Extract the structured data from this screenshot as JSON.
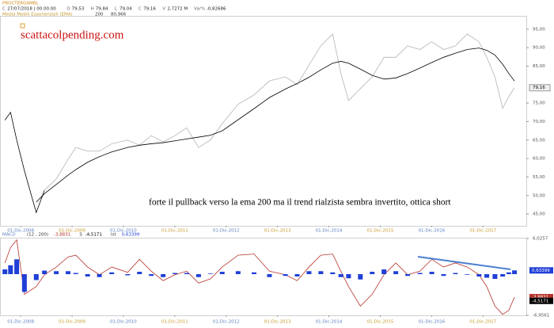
{
  "header": {
    "symbol": "PROCTERGAMBL",
    "fields": [
      {
        "label": "C",
        "value": "27/07/2018 | 00.00.00"
      },
      {
        "label": "O",
        "value": "79,53"
      },
      {
        "label": "H",
        "value": "79,84"
      },
      {
        "label": "L",
        "value": "79,04"
      },
      {
        "label": "C",
        "value": "79,16"
      },
      {
        "label": "V",
        "value": "2,7272 M"
      },
      {
        "label": "Var%",
        "value": "-0,82686"
      }
    ]
  },
  "chart_data": [
    {
      "type": "line",
      "watermark": "scattacolpending.com",
      "annotation": "forte il pullback verso la ema 200 ma il trend rialzista sembra invertito, ottica short",
      "x": [
        2008.61,
        2008.72,
        2008.84,
        2008.99,
        2009.22,
        2009.38,
        2009.61,
        2009.84,
        2009.99,
        2010.22,
        2010.45,
        2010.69,
        2011.0,
        2011.23,
        2011.46,
        2011.69,
        2011.92,
        2012.15,
        2012.38,
        2012.61,
        2012.84,
        2013.15,
        2013.46,
        2013.76,
        2014.07,
        2014.3,
        2014.53,
        2014.76,
        2014.99,
        2015.15,
        2015.3,
        2015.53,
        2015.76,
        2015.99,
        2016.22,
        2016.45,
        2016.69,
        2016.92,
        2017.15,
        2017.38,
        2017.61,
        2017.84,
        2017.99,
        2018.15,
        2018.3,
        2018.42,
        2018.53
      ],
      "series": [
        {
          "color": "#000000",
          "values": [
            70.4,
            72.5,
            65,
            56.7,
            45.4,
            51.4,
            null,
            null,
            null,
            null,
            null,
            null,
            null,
            null,
            null,
            null,
            null,
            null,
            null,
            null,
            null,
            null,
            null,
            null,
            null,
            null,
            null,
            null,
            null,
            null,
            null,
            null,
            null,
            null,
            null,
            null,
            null,
            null,
            null,
            null,
            null,
            null,
            null,
            null,
            null,
            null,
            null
          ]
        },
        {
          "color": "#b4b4b4",
          "last_label": "79,16",
          "values": [
            null,
            null,
            null,
            null,
            null,
            51.4,
            54.5,
            59.8,
            63,
            62,
            62,
            64,
            65,
            63.6,
            66.2,
            64.5,
            66.2,
            68.3,
            63,
            65,
            69.4,
            74.7,
            77.2,
            81,
            82.1,
            80,
            85.3,
            90.5,
            93.7,
            83.1,
            75.7,
            78.9,
            82.1,
            87.4,
            87.4,
            90.5,
            89.5,
            91.6,
            89.5,
            90.5,
            93.7,
            91.6,
            87.4,
            82.1,
            73.6,
            76.8,
            79.16
          ]
        },
        {
          "name": "Media Mobili Esponenziali (EMA)",
          "period": "200",
          "last_label": "80,966",
          "color": "#000000",
          "values": [
            null,
            null,
            null,
            null,
            48.2,
            50.5,
            53,
            55.5,
            57,
            59,
            60.5,
            61.8,
            63,
            63.6,
            64,
            64.3,
            64.8,
            65.3,
            65.8,
            66.3,
            67.5,
            70.5,
            73.5,
            76.5,
            78.8,
            80.3,
            82,
            84,
            85.8,
            86.3,
            85.8,
            84.2,
            82.5,
            81.5,
            81.8,
            83,
            84.5,
            86,
            87.4,
            88.5,
            89.5,
            89.9,
            89.3,
            88,
            85.5,
            83,
            80.966
          ]
        }
      ],
      "xlim": [
        2008.53,
        2018.76
      ],
      "xticks": [
        {
          "value": 2008.917,
          "label": "01-Dic-2008"
        },
        {
          "value": 2009.917,
          "label": "01-Dic-2009"
        },
        {
          "value": 2010.917,
          "label": "01-Dic-2010"
        },
        {
          "value": 2011.917,
          "label": "01-Dic-2011"
        },
        {
          "value": 2012.917,
          "label": "01-Dic-2012"
        },
        {
          "value": 2013.917,
          "label": "01-Dic-2013"
        },
        {
          "value": 2014.917,
          "label": "01-Dic-2014"
        },
        {
          "value": 2015.917,
          "label": "01-Dic-2015"
        },
        {
          "value": 2016.917,
          "label": "01-Dic-2016"
        },
        {
          "value": 2017.917,
          "label": "01-Dic-2017"
        }
      ],
      "ylim": [
        41.8,
        98.4
      ],
      "yticks": [
        {
          "value": 45,
          "label": "45,00"
        },
        {
          "value": 50,
          "label": "50,00"
        },
        {
          "value": 55,
          "label": "55,00"
        },
        {
          "value": 60,
          "label": "60,00"
        },
        {
          "value": 65,
          "label": "65,00"
        },
        {
          "value": 70,
          "label": "70,00"
        },
        {
          "value": 75,
          "label": "75,00"
        },
        {
          "value": 85,
          "label": "85,00"
        },
        {
          "value": 90,
          "label": "90,00"
        },
        {
          "value": 95,
          "label": "95,00"
        }
      ]
    },
    {
      "type": "line",
      "title": "MACD",
      "params": "(12 , 200)",
      "x": [
        2008.61,
        2008.72,
        2008.84,
        2008.99,
        2009.22,
        2009.38,
        2009.61,
        2009.84,
        2009.99,
        2010.22,
        2010.45,
        2010.69,
        2011.0,
        2011.23,
        2011.46,
        2011.69,
        2011.92,
        2012.15,
        2012.38,
        2012.61,
        2012.84,
        2013.15,
        2013.46,
        2013.76,
        2014.07,
        2014.3,
        2014.53,
        2014.76,
        2014.99,
        2015.15,
        2015.3,
        2015.53,
        2015.76,
        2015.99,
        2016.22,
        2016.45,
        2016.69,
        2016.92,
        2017.15,
        2017.38,
        2017.61,
        2017.84,
        2017.99,
        2018.15,
        2018.3,
        2018.42,
        2018.53
      ],
      "series": [
        {
          "color": "#b5332a",
          "last_label": "-3,8831",
          "values": [
            1.9,
            4.5,
            5.8,
            -3.4,
            -2.1,
            -0.1,
            1.2,
            2.9,
            3.2,
            1.2,
            -0.1,
            1.2,
            0.3,
            2.5,
            0.5,
            -1.1,
            -0.1,
            0.5,
            -1.5,
            -0.8,
            1.2,
            3.2,
            3.4,
            0.5,
            -0.1,
            -1.1,
            1.2,
            3.2,
            3.4,
            0.5,
            -2.1,
            -5.4,
            -3.4,
            -0.1,
            1.9,
            -0.1,
            0.5,
            2.5,
            1.2,
            1.9,
            1.2,
            -0.1,
            -2.1,
            -5.4,
            -6.8,
            -6.1,
            -3.8831
          ]
        },
        {
          "name": "S",
          "color": "#000000",
          "last_value": -4.5171,
          "last_label": "-4,5171"
        },
        {
          "name": "Ist",
          "type": "bar",
          "color": "#1f3fd6",
          "last_label": "0,63399",
          "values": [
            0.8,
            1.5,
            2.5,
            -3,
            -1,
            0.6,
            0.5,
            0.5,
            0.2,
            -0.4,
            -0.5,
            0.3,
            -0.2,
            0.4,
            -0.3,
            -0.5,
            0.2,
            0.2,
            -0.5,
            0.1,
            0.4,
            0.5,
            0.3,
            -0.5,
            -0.3,
            -0.4,
            0.5,
            0.5,
            0.3,
            -0.5,
            -0.7,
            -0.9,
            0.4,
            0.8,
            0.5,
            -0.3,
            0.2,
            0.4,
            -0.3,
            0.2,
            -0.1,
            -0.4,
            -0.6,
            -0.8,
            -0.4,
            0.3,
            0.63399
          ]
        }
      ],
      "xlim": [
        2008.53,
        2018.76
      ],
      "xticks": [
        {
          "value": 2008.917,
          "label": "01-Dic-2008"
        },
        {
          "value": 2009.917,
          "label": "01-Dic-2009"
        },
        {
          "value": 2010.917,
          "label": "01-Dic-2010"
        },
        {
          "value": 2011.917,
          "label": "01-Dic-2011"
        },
        {
          "value": 2012.917,
          "label": "01-Dic-2012"
        },
        {
          "value": 2013.917,
          "label": "01-Dic-2013"
        },
        {
          "value": 2014.917,
          "label": "01-Dic-2014"
        },
        {
          "value": 2015.917,
          "label": "01-Dic-2015"
        },
        {
          "value": 2016.917,
          "label": "01-Dic-2016"
        },
        {
          "value": 2017.917,
          "label": "01-Dic-2017"
        }
      ],
      "ylim": [
        -6.9561,
        6.0257
      ],
      "yticks": [
        {
          "value": -6.9561,
          "label": "-6,9561"
        },
        {
          "value": 6.0257,
          "label": "6,0257"
        }
      ]
    }
  ]
}
